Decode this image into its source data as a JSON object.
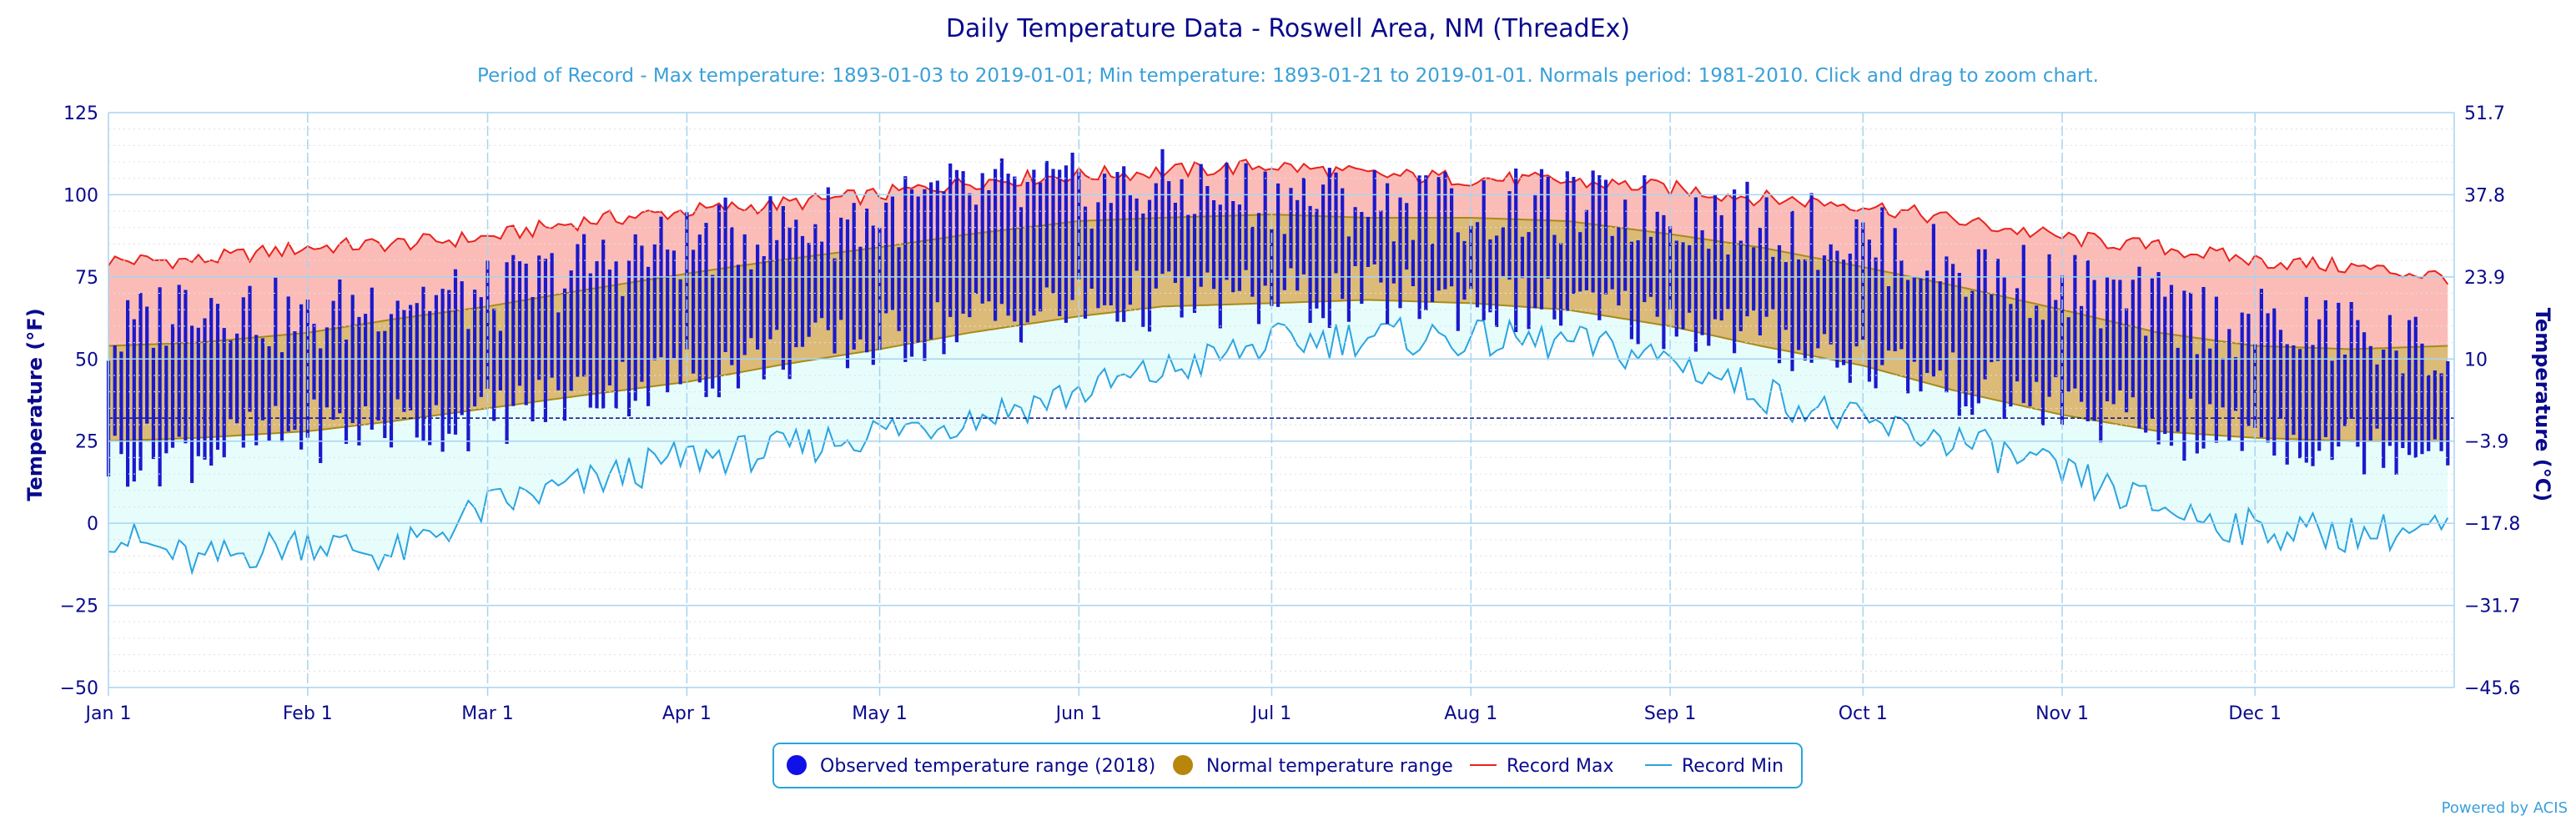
{
  "chart_data": {
    "type": "area",
    "title": "Daily Temperature Data - Roswell Area, NM (ThreadEx)",
    "subtitle": "Period of Record - Max temperature: 1893-01-03 to 2019-01-01; Min temperature: 1893-01-21 to 2019-01-01. Normals period: 1981-2010. Click and drag to zoom chart.",
    "ylabel": "Temperature (°F)",
    "ylabel_right": "Temperature (°C)",
    "ylim": [
      -50,
      125
    ],
    "y_ticks": [
      "125",
      "100",
      "75",
      "50",
      "25",
      "0",
      "−25",
      "−50"
    ],
    "y_ticks_right": [
      "51.7",
      "37.8",
      "23.9",
      "10",
      "−3.9",
      "−17.8",
      "−31.7",
      "−45.6"
    ],
    "x_ticks": [
      "Jan 1",
      "Feb 1",
      "Mar 1",
      "Apr 1",
      "May 1",
      "Jun 1",
      "Jul 1",
      "Aug 1",
      "Sep 1",
      "Oct 1",
      "Nov 1",
      "Dec 1"
    ],
    "x_tick_days": [
      1,
      32,
      60,
      91,
      121,
      152,
      182,
      213,
      244,
      274,
      305,
      335
    ],
    "days_in_year": 365,
    "freezing_line_f": 32,
    "grid": true,
    "legend_position": "bottom-center",
    "legend": [
      {
        "label": "Observed temperature range (2018)",
        "symbol": "circle",
        "color": "#1010e8"
      },
      {
        "label": "Normal temperature range",
        "symbol": "circle",
        "color": "#b8860b"
      },
      {
        "label": "Record Max",
        "symbol": "line",
        "color": "#e8231e"
      },
      {
        "label": "Record Min",
        "symbol": "line",
        "color": "#2aa4e0"
      }
    ],
    "colors": {
      "observed": "#1a1acc",
      "normal_fill": "#dcbb78",
      "normal_edge": "#a88a18",
      "record_max_line": "#e8231e",
      "record_max_fill": "#fbbcb8",
      "record_min_line": "#2aa4e0",
      "record_min_fill": "#e6fdfc",
      "grid": "#a8d4f0",
      "axis_text": "#0a0a8c",
      "freezing_line": "#0a0a8c"
    },
    "series": [
      {
        "name": "Record Max",
        "day": [
          1,
          15,
          32,
          45,
          60,
          75,
          91,
          105,
          121,
          135,
          152,
          165,
          182,
          197,
          213,
          228,
          244,
          258,
          274,
          289,
          305,
          320,
          335,
          350,
          365
        ],
        "values": [
          80,
          80,
          84,
          85,
          87,
          92,
          95,
          97,
          100,
          104,
          106,
          107,
          109,
          106,
          105,
          104,
          102,
          99,
          97,
          92,
          87,
          84,
          80,
          78,
          75
        ]
      },
      {
        "name": "Record Min",
        "day": [
          1,
          15,
          32,
          45,
          60,
          75,
          91,
          105,
          121,
          135,
          152,
          165,
          182,
          197,
          213,
          228,
          244,
          258,
          274,
          289,
          305,
          320,
          335,
          350,
          365
        ],
        "values": [
          -3,
          -12,
          -5,
          -10,
          5,
          12,
          20,
          22,
          28,
          32,
          40,
          46,
          55,
          57,
          56,
          55,
          50,
          40,
          30,
          25,
          15,
          5,
          -2,
          -3,
          -2
        ]
      },
      {
        "name": "Normal temperature range",
        "day": [
          1,
          15,
          32,
          45,
          60,
          75,
          91,
          105,
          121,
          135,
          152,
          165,
          182,
          197,
          213,
          228,
          244,
          258,
          274,
          289,
          305,
          320,
          335,
          350,
          365
        ],
        "high": [
          54,
          55,
          58,
          62,
          66,
          71,
          76,
          80,
          84,
          88,
          92,
          93,
          94,
          93,
          93,
          92,
          88,
          84,
          78,
          72,
          65,
          58,
          54,
          53,
          54
        ],
        "low": [
          25,
          26,
          28,
          31,
          35,
          39,
          43,
          48,
          53,
          58,
          63,
          66,
          67,
          68,
          67,
          65,
          60,
          54,
          48,
          40,
          33,
          28,
          26,
          25,
          25
        ]
      },
      {
        "name": "Observed temperature range (2018)",
        "day": [
          1,
          15,
          32,
          45,
          60,
          75,
          91,
          105,
          121,
          135,
          152,
          165,
          182,
          197,
          213,
          228,
          244,
          258,
          274,
          289,
          305,
          320,
          335,
          350,
          365
        ],
        "high": [
          55,
          70,
          60,
          70,
          68,
          78,
          85,
          90,
          94,
          100,
          101,
          102,
          100,
          98,
          96,
          96,
          95,
          92,
          86,
          78,
          72,
          65,
          60,
          58,
          50
        ],
        "low": [
          20,
          22,
          28,
          30,
          32,
          40,
          45,
          52,
          55,
          62,
          66,
          68,
          68,
          69,
          68,
          65,
          62,
          57,
          50,
          42,
          36,
          28,
          28,
          24,
          25
        ]
      }
    ]
  },
  "credits": "Powered by ACIS"
}
